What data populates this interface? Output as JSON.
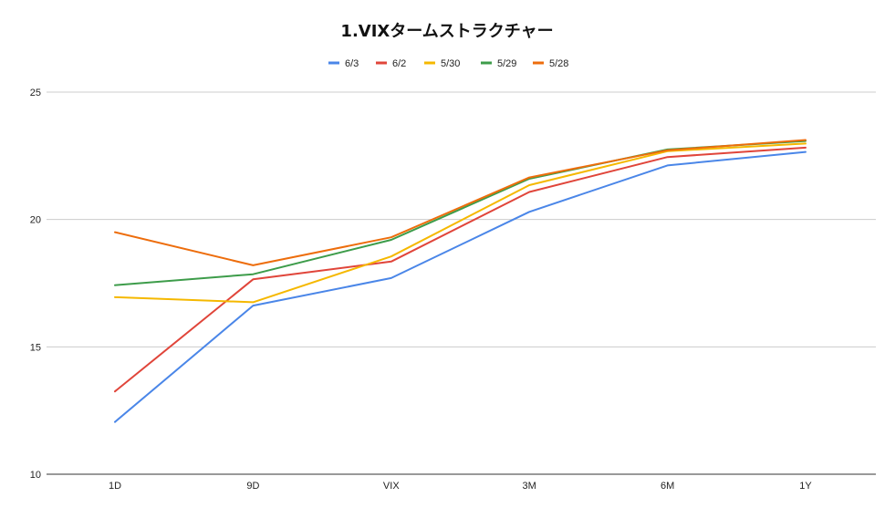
{
  "chart_data": {
    "type": "line",
    "title": "1.VIXタームストラクチャー",
    "xlabel": "",
    "ylabel": "",
    "categories": [
      "1D",
      "9D",
      "VIX",
      "3M",
      "6M",
      "1Y"
    ],
    "ylim": [
      10,
      25
    ],
    "yticks": [
      10,
      15,
      20,
      25
    ],
    "grid": true,
    "legend_position": "top-center",
    "series": [
      {
        "name": "6/3",
        "color": "#4a86e8",
        "values": [
          12.05,
          16.62,
          17.7,
          20.3,
          22.12,
          22.65
        ]
      },
      {
        "name": "6/2",
        "color": "#e0453a",
        "values": [
          13.25,
          17.65,
          18.35,
          21.08,
          22.45,
          22.82
        ]
      },
      {
        "name": "5/30",
        "color": "#f5b800",
        "values": [
          16.95,
          16.75,
          18.55,
          21.35,
          22.68,
          22.98
        ]
      },
      {
        "name": "5/29",
        "color": "#3d9c4a",
        "values": [
          17.42,
          17.85,
          19.2,
          21.6,
          22.75,
          23.08
        ]
      },
      {
        "name": "5/28",
        "color": "#ed6d0c",
        "values": [
          19.5,
          18.2,
          19.3,
          21.65,
          22.72,
          23.12
        ]
      }
    ]
  }
}
